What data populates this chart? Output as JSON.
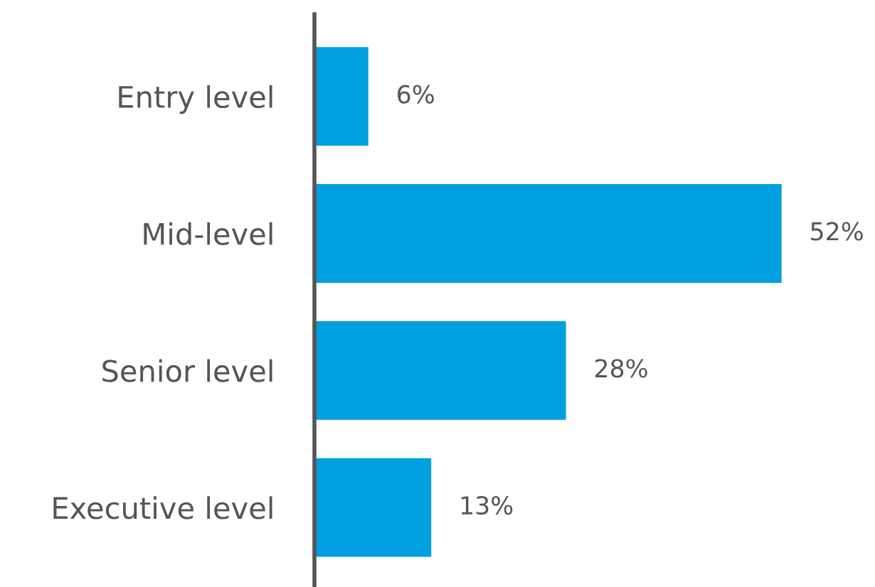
{
  "chart_data": {
    "type": "bar",
    "orientation": "horizontal",
    "categories": [
      "Entry level",
      "Mid-level",
      "Senior level",
      "Executive level"
    ],
    "values": [
      6,
      52,
      28,
      13
    ],
    "value_labels": [
      "6%",
      "52%",
      "28%",
      "13%"
    ],
    "color": "#009fdf",
    "tick_labels": "y",
    "grid": false,
    "legend": false
  }
}
